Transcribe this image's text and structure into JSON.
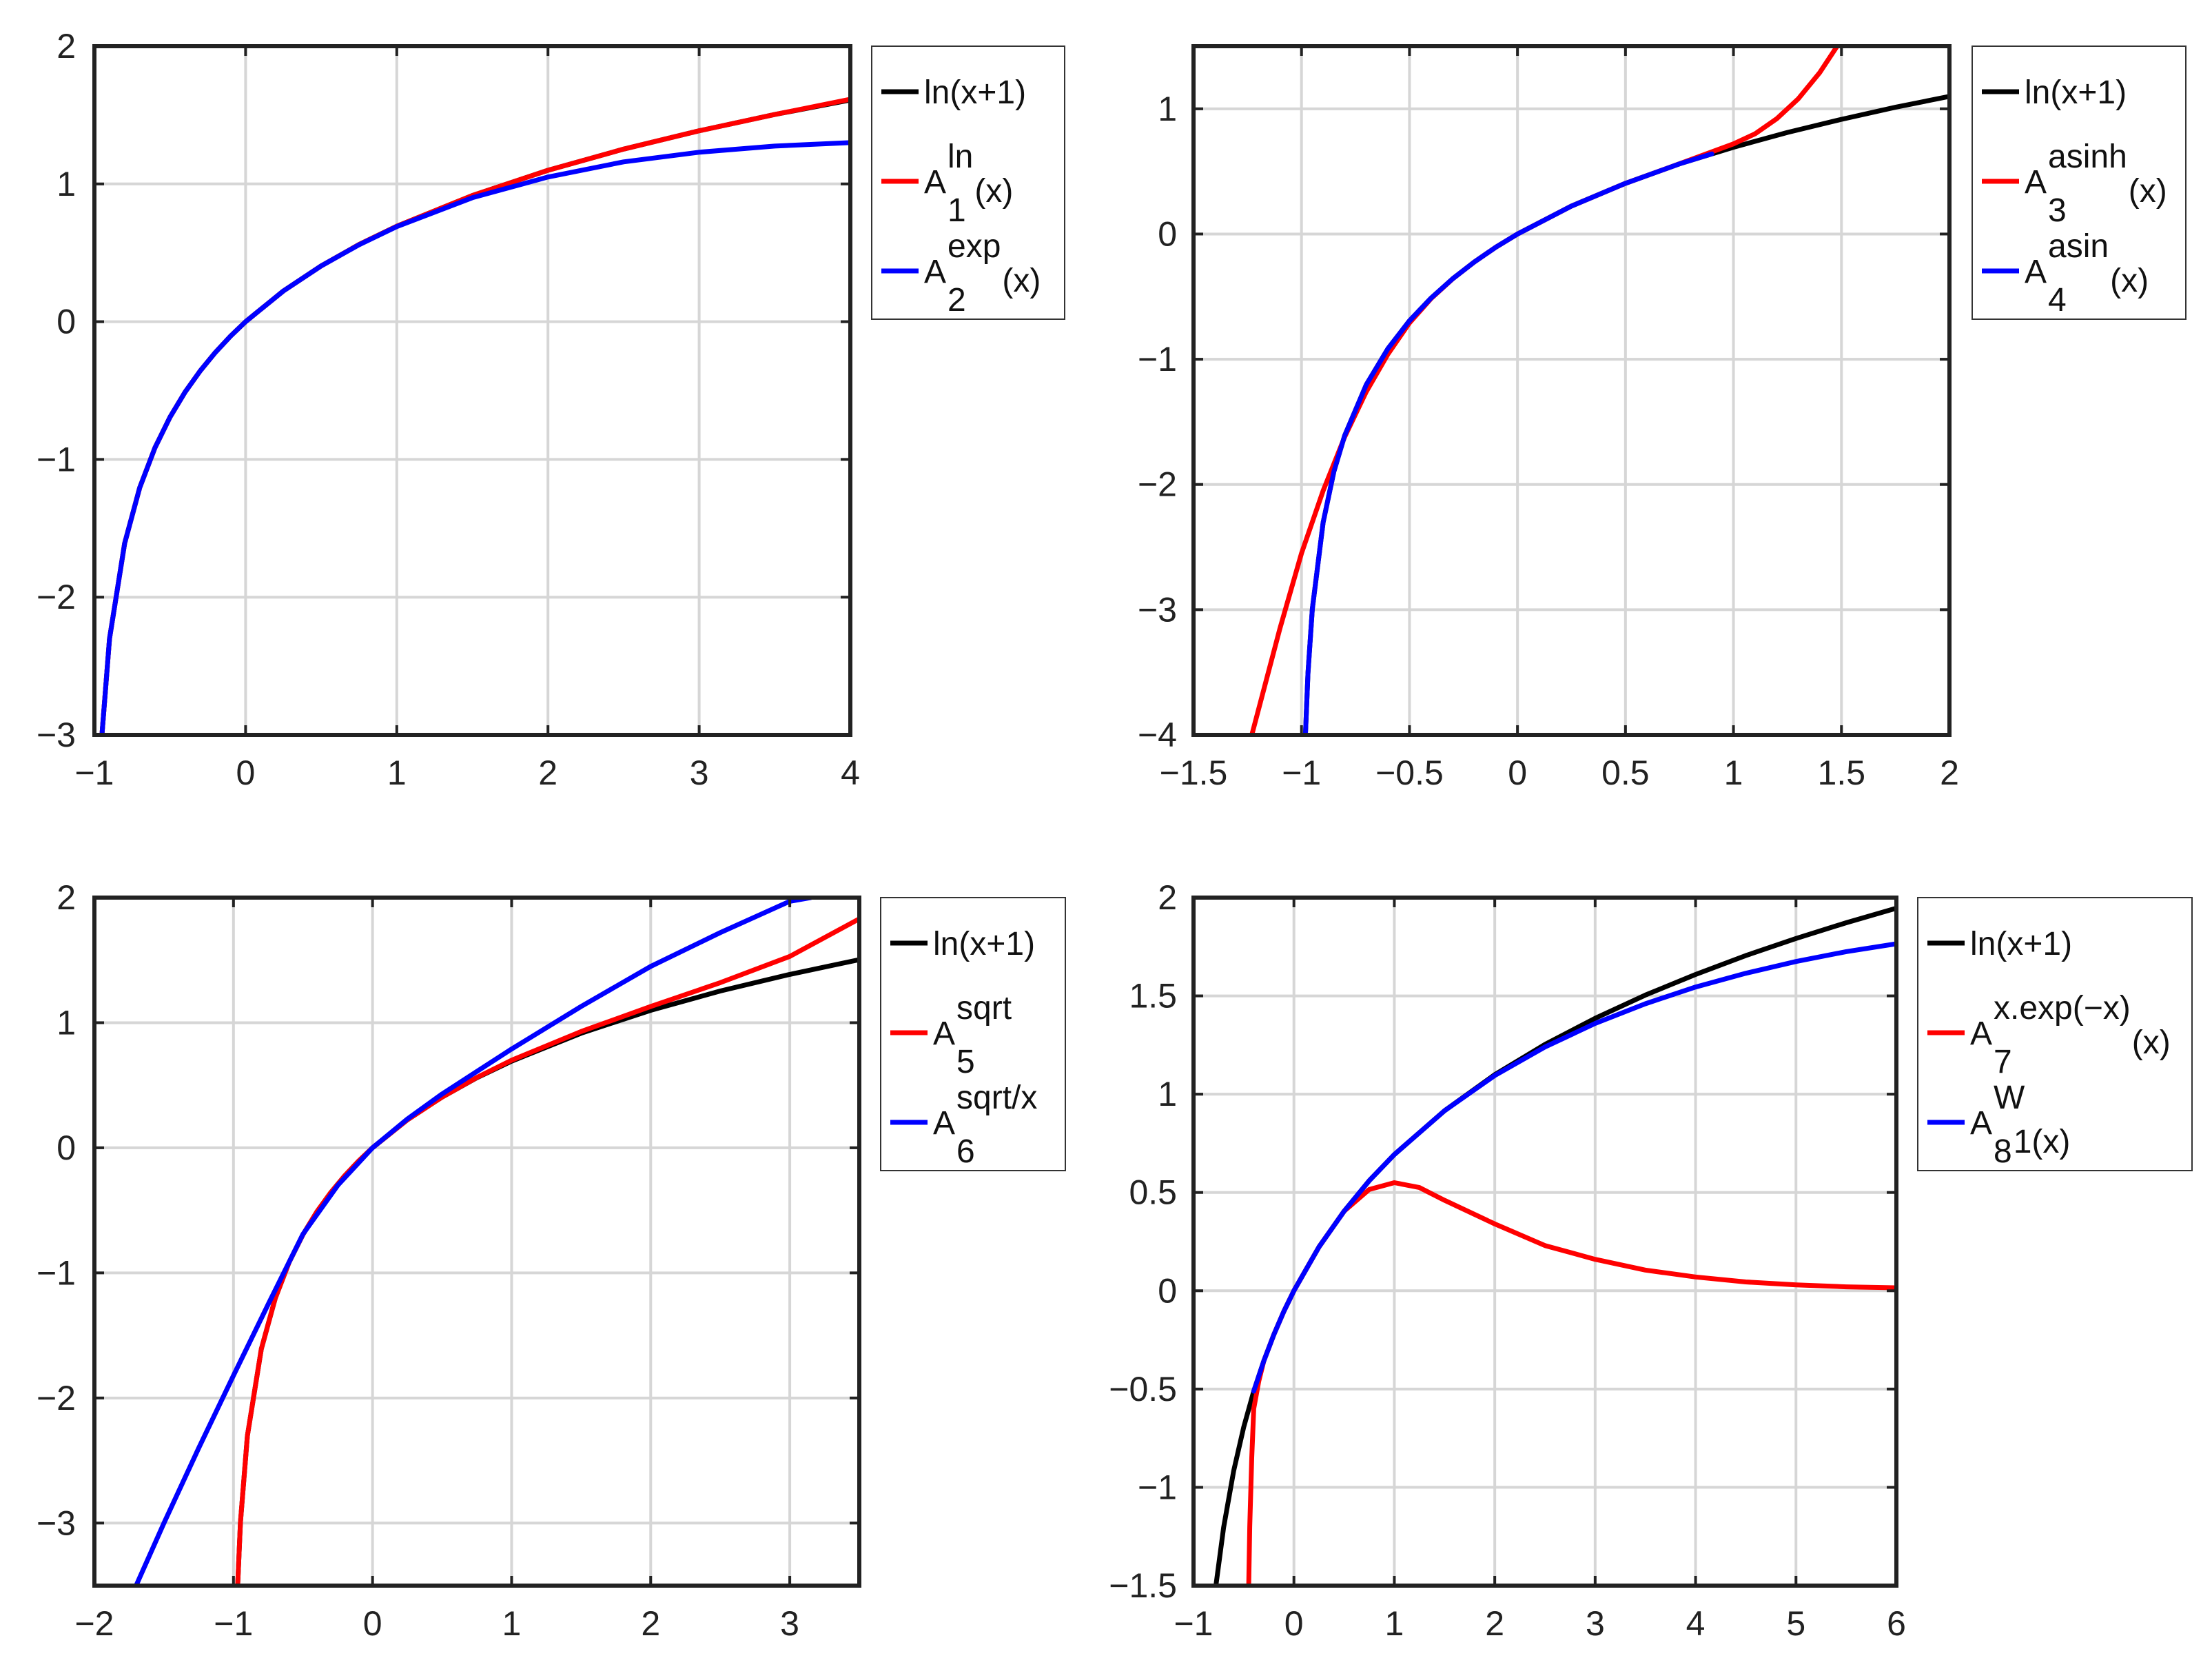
{
  "colors": {
    "black": "#000000",
    "red": "#ff0000",
    "blue": "#0000ff",
    "grid": "#d6d6d6",
    "axis": "#222222"
  },
  "chart_data": [
    {
      "id": "p1",
      "type": "line",
      "title": "",
      "xlabel": "",
      "ylabel": "",
      "xlim": [
        -1,
        4
      ],
      "ylim": [
        -3,
        2
      ],
      "xticks": [
        -1,
        0,
        1,
        2,
        3,
        4
      ],
      "xtick_labels": [
        "−1",
        "0",
        "1",
        "2",
        "3",
        "4"
      ],
      "yticks": [
        -3,
        -2,
        -1,
        0,
        1,
        2
      ],
      "ytick_labels": [
        "−3",
        "−2",
        "−1",
        "0",
        "1",
        "2"
      ],
      "grid": true,
      "legend_position": "outside-right-top",
      "series": [
        {
          "color": "#000000",
          "label_text": "ln(x+1)",
          "label_sup": "",
          "label_sub": "",
          "label_tail": "",
          "x": [
            -0.95,
            -0.9,
            -0.8,
            -0.7,
            -0.6,
            -0.5,
            -0.4,
            -0.3,
            -0.2,
            -0.1,
            0,
            0.25,
            0.5,
            0.75,
            1,
            1.5,
            2,
            2.5,
            3,
            3.5,
            4
          ],
          "y": [
            -2.996,
            -2.303,
            -1.609,
            -1.204,
            -0.916,
            -0.693,
            -0.511,
            -0.357,
            -0.223,
            -0.105,
            0,
            0.223,
            0.405,
            0.56,
            0.693,
            0.916,
            1.099,
            1.253,
            1.386,
            1.504,
            1.609
          ]
        },
        {
          "color": "#ff0000",
          "label_text": "A",
          "label_sup": "ln",
          "label_sub": "1",
          "label_tail": "(x)",
          "x": [
            -0.95,
            -0.9,
            -0.8,
            -0.7,
            -0.6,
            -0.5,
            -0.4,
            -0.3,
            -0.2,
            -0.1,
            0,
            0.25,
            0.5,
            0.75,
            1,
            1.5,
            2,
            2.5,
            3,
            3.5,
            4
          ],
          "y": [
            -2.996,
            -2.303,
            -1.609,
            -1.204,
            -0.916,
            -0.693,
            -0.511,
            -0.357,
            -0.223,
            -0.105,
            0,
            0.223,
            0.405,
            0.56,
            0.693,
            0.916,
            1.099,
            1.253,
            1.386,
            1.504,
            1.615
          ]
        },
        {
          "color": "#0000ff",
          "label_text": "A",
          "label_sup": "exp",
          "label_sub": "2",
          "label_tail": "(x)",
          "x": [
            -0.95,
            -0.9,
            -0.8,
            -0.7,
            -0.6,
            -0.5,
            -0.4,
            -0.3,
            -0.2,
            -0.1,
            0,
            0.25,
            0.5,
            0.75,
            1,
            1.5,
            2,
            2.5,
            3,
            3.5,
            4
          ],
          "y": [
            -2.996,
            -2.303,
            -1.609,
            -1.204,
            -0.916,
            -0.693,
            -0.511,
            -0.357,
            -0.223,
            -0.105,
            0,
            0.223,
            0.405,
            0.558,
            0.69,
            0.9,
            1.05,
            1.16,
            1.23,
            1.275,
            1.3
          ]
        }
      ]
    },
    {
      "id": "p2",
      "type": "line",
      "title": "",
      "xlabel": "",
      "ylabel": "",
      "xlim": [
        -1.5,
        2
      ],
      "ylim": [
        -4,
        1.5
      ],
      "xticks": [
        -1.5,
        -1,
        -0.5,
        0,
        0.5,
        1,
        1.5,
        2
      ],
      "xtick_labels": [
        "−1.5",
        "−1",
        "−0.5",
        "0",
        "0.5",
        "1",
        "1.5",
        "2"
      ],
      "yticks": [
        -4,
        -3,
        -2,
        -1,
        0,
        1
      ],
      "ytick_labels": [
        "−4",
        "−3",
        "−2",
        "−1",
        "0",
        "1"
      ],
      "grid": true,
      "legend_position": "outside-right-top",
      "series": [
        {
          "color": "#000000",
          "label_text": "ln(x+1)",
          "label_sup": "",
          "label_sub": "",
          "label_tail": "",
          "x": [
            -0.982,
            -0.97,
            -0.95,
            -0.9,
            -0.85,
            -0.8,
            -0.7,
            -0.6,
            -0.5,
            -0.4,
            -0.3,
            -0.2,
            -0.1,
            0,
            0.25,
            0.5,
            0.75,
            1,
            1.25,
            1.5,
            1.75,
            2
          ],
          "y": [
            -4.0,
            -3.507,
            -2.996,
            -2.303,
            -1.897,
            -1.609,
            -1.204,
            -0.916,
            -0.693,
            -0.511,
            -0.357,
            -0.223,
            -0.105,
            0,
            0.223,
            0.405,
            0.56,
            0.693,
            0.811,
            0.916,
            1.012,
            1.099
          ]
        },
        {
          "color": "#ff0000",
          "label_text": "A",
          "label_sup": "asinh",
          "label_sub": "3",
          "label_tail": "(x)",
          "x": [
            -1.23,
            -1.1,
            -1.0,
            -0.9,
            -0.8,
            -0.7,
            -0.6,
            -0.5,
            -0.4,
            -0.3,
            -0.2,
            -0.1,
            0,
            0.25,
            0.5,
            0.75,
            1,
            1.1,
            1.2,
            1.3,
            1.4,
            1.48
          ],
          "y": [
            -4.0,
            -3.15,
            -2.55,
            -2.05,
            -1.62,
            -1.26,
            -0.96,
            -0.71,
            -0.515,
            -0.358,
            -0.223,
            -0.105,
            0,
            0.223,
            0.405,
            0.561,
            0.72,
            0.8,
            0.92,
            1.08,
            1.29,
            1.5
          ]
        },
        {
          "color": "#0000ff",
          "label_text": "A",
          "label_sup": "asin",
          "label_sub": "4",
          "label_tail": "(x)",
          "x": [
            -0.982,
            -0.97,
            -0.95,
            -0.9,
            -0.85,
            -0.8,
            -0.7,
            -0.6,
            -0.5,
            -0.4,
            -0.3,
            -0.2,
            -0.1,
            0,
            0.25,
            0.5,
            0.75,
            0.9
          ],
          "y": [
            -4.0,
            -3.507,
            -2.996,
            -2.303,
            -1.897,
            -1.609,
            -1.204,
            -0.916,
            -0.693,
            -0.511,
            -0.357,
            -0.223,
            -0.105,
            0,
            0.223,
            0.405,
            0.56,
            0.64
          ]
        }
      ]
    },
    {
      "id": "p3",
      "type": "line",
      "title": "",
      "xlabel": "",
      "ylabel": "",
      "xlim": [
        -2,
        3.5
      ],
      "ylim": [
        -3.5,
        2
      ],
      "xticks": [
        -2,
        -1,
        0,
        1,
        2,
        3
      ],
      "xtick_labels": [
        "−2",
        "−1",
        "0",
        "1",
        "2",
        "3"
      ],
      "yticks": [
        -3,
        -2,
        -1,
        0,
        1,
        2
      ],
      "ytick_labels": [
        "−3",
        "−2",
        "−1",
        "0",
        "1",
        "2"
      ],
      "grid": true,
      "legend_position": "outside-right-top",
      "series": [
        {
          "color": "#000000",
          "label_text": "ln(x+1)",
          "label_sup": "",
          "label_sub": "",
          "label_tail": "",
          "x": [
            -0.97,
            -0.95,
            -0.9,
            -0.8,
            -0.7,
            -0.6,
            -0.5,
            -0.4,
            -0.3,
            -0.2,
            -0.1,
            0,
            0.25,
            0.5,
            0.75,
            1,
            1.5,
            2,
            2.5,
            3,
            3.5
          ],
          "y": [
            -3.5,
            -2.996,
            -2.303,
            -1.609,
            -1.204,
            -0.916,
            -0.693,
            -0.511,
            -0.357,
            -0.223,
            -0.105,
            0,
            0.223,
            0.405,
            0.56,
            0.693,
            0.916,
            1.099,
            1.253,
            1.386,
            1.504
          ]
        },
        {
          "color": "#ff0000",
          "label_text": "A",
          "label_sup": "sqrt",
          "label_sub": "5",
          "label_tail": "",
          "x": [
            -0.97,
            -0.95,
            -0.9,
            -0.8,
            -0.7,
            -0.6,
            -0.5,
            -0.4,
            -0.3,
            -0.2,
            -0.1,
            0,
            0.25,
            0.5,
            0.75,
            1,
            1.5,
            2,
            2.5,
            3,
            3.5
          ],
          "y": [
            -3.5,
            -2.996,
            -2.303,
            -1.609,
            -1.204,
            -0.916,
            -0.693,
            -0.511,
            -0.357,
            -0.223,
            -0.105,
            0,
            0.223,
            0.405,
            0.562,
            0.7,
            0.93,
            1.13,
            1.32,
            1.53,
            1.83
          ]
        },
        {
          "color": "#0000ff",
          "label_text": "A",
          "label_sup": "sqrt/x",
          "label_sub": "6",
          "label_tail": "",
          "x": [
            -1.7,
            -1.5,
            -1.25,
            -1.0,
            -0.75,
            -0.5,
            -0.25,
            0,
            0.25,
            0.5,
            0.75,
            1,
            1.5,
            2,
            2.5,
            3,
            3.15
          ],
          "y": [
            -3.5,
            -3.0,
            -2.4,
            -1.82,
            -1.25,
            -0.69,
            -0.3,
            0,
            0.23,
            0.43,
            0.61,
            0.79,
            1.13,
            1.45,
            1.72,
            1.97,
            2.0
          ]
        }
      ]
    },
    {
      "id": "p4",
      "type": "line",
      "title": "",
      "xlabel": "",
      "ylabel": "",
      "xlim": [
        -1,
        6
      ],
      "ylim": [
        -1.5,
        2
      ],
      "xticks": [
        -1,
        0,
        1,
        2,
        3,
        4,
        5,
        6
      ],
      "xtick_labels": [
        "−1",
        "0",
        "1",
        "2",
        "3",
        "4",
        "5",
        "6"
      ],
      "yticks": [
        -1.5,
        -1,
        -0.5,
        0,
        0.5,
        1,
        1.5,
        2
      ],
      "ytick_labels": [
        "−1.5",
        "−1",
        "−0.5",
        "0",
        "0.5",
        "1",
        "1.5",
        "2"
      ],
      "grid": true,
      "legend_position": "outside-right-top",
      "series": [
        {
          "color": "#000000",
          "label_text": "ln(x+1)",
          "label_sup": "",
          "label_sub": "",
          "label_tail": "",
          "x": [
            -0.777,
            -0.7,
            -0.6,
            -0.5,
            -0.4,
            -0.3,
            -0.2,
            -0.1,
            0,
            0.25,
            0.5,
            0.75,
            1,
            1.5,
            2,
            2.5,
            3,
            3.5,
            4,
            4.5,
            5,
            5.5,
            6
          ],
          "y": [
            -1.5,
            -1.204,
            -0.916,
            -0.693,
            -0.511,
            -0.357,
            -0.223,
            -0.105,
            0,
            0.223,
            0.405,
            0.56,
            0.693,
            0.916,
            1.099,
            1.253,
            1.386,
            1.504,
            1.609,
            1.705,
            1.792,
            1.872,
            1.946
          ]
        },
        {
          "color": "#ff0000",
          "label_text": "A",
          "label_sup": "x.exp(−x)",
          "label_sub": "7",
          "label_tail": "(x)",
          "x": [
            -0.45,
            -0.44,
            -0.42,
            -0.4,
            -0.35,
            -0.3,
            -0.2,
            -0.1,
            0,
            0.25,
            0.5,
            0.75,
            1,
            1.25,
            1.5,
            2,
            2.5,
            3,
            3.5,
            4,
            4.5,
            5,
            5.5,
            6
          ],
          "y": [
            -1.5,
            -1.2,
            -0.85,
            -0.6,
            -0.46,
            -0.357,
            -0.223,
            -0.105,
            0,
            0.223,
            0.405,
            0.515,
            0.55,
            0.525,
            0.46,
            0.34,
            0.23,
            0.16,
            0.105,
            0.07,
            0.045,
            0.03,
            0.02,
            0.015
          ]
        },
        {
          "color": "#0000ff",
          "label_text": "A",
          "label_sup": "W",
          "label_sub": "8",
          "label_tail": "1(x)",
          "x": [
            -0.4,
            -0.3,
            -0.2,
            -0.1,
            0,
            0.25,
            0.5,
            0.75,
            1,
            1.5,
            2,
            2.5,
            3,
            3.5,
            4,
            4.5,
            5,
            5.5,
            6
          ],
          "y": [
            -0.511,
            -0.357,
            -0.223,
            -0.105,
            0,
            0.223,
            0.405,
            0.56,
            0.693,
            0.916,
            1.095,
            1.24,
            1.36,
            1.46,
            1.545,
            1.615,
            1.675,
            1.725,
            1.765
          ]
        }
      ]
    }
  ]
}
